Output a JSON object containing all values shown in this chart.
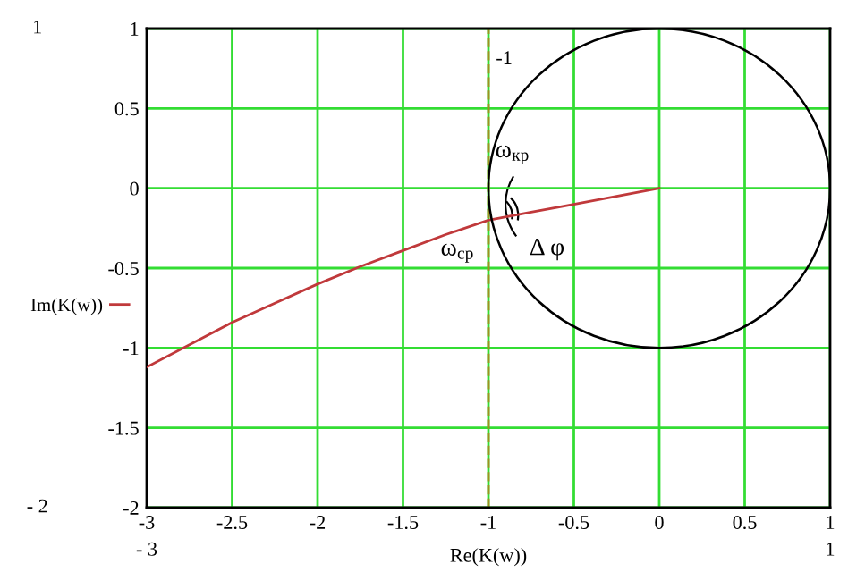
{
  "chart_data": {
    "type": "line",
    "xlabel": "Re(K(w))",
    "xlim": [
      -3,
      1
    ],
    "xticks": [
      -3,
      -2.5,
      -2,
      -1.5,
      -1,
      -0.5,
      0,
      0.5,
      1
    ],
    "ylim": [
      -2,
      1
    ],
    "yticks": [
      -2,
      -1.5,
      -1,
      -0.5,
      0,
      0.5,
      1
    ],
    "grid": true,
    "legend": "left",
    "marker": "none",
    "line_style": "solid",
    "series": [
      {
        "name": "Im(K(w))",
        "color": "#c0393b",
        "x": [
          -3,
          -2.75,
          -2.5,
          -2.25,
          -2,
          -1.75,
          -1.5,
          -1.25,
          -1,
          -0.75,
          -0.5,
          -0.25,
          0
        ],
        "values": [
          -1.12,
          -0.98,
          -0.84,
          -0.72,
          -0.6,
          -0.49,
          -0.39,
          -0.29,
          -0.2,
          -0.15,
          -0.1,
          -0.05,
          0
        ]
      }
    ],
    "ref_lines": [
      {
        "axis": "x",
        "value": -1,
        "label": "-1",
        "color": "#a09020",
        "line_style": "dashed"
      }
    ],
    "annotations": [
      "1",
      "- 2",
      "- 3",
      "1",
      "ω$_{кр}$",
      "ω$_{ср}$",
      "Δ φ"
    ]
  }
}
